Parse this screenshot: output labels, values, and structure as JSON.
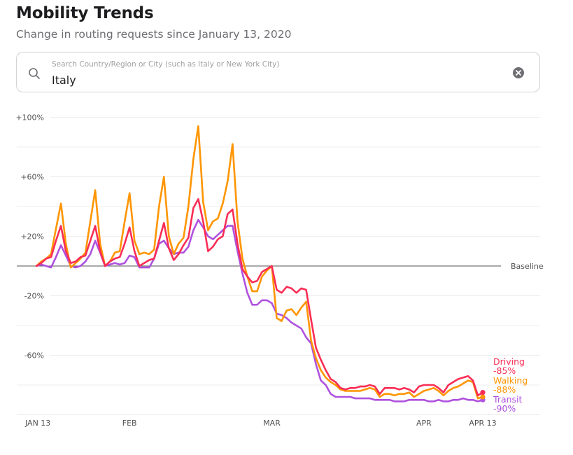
{
  "header": {
    "title": "Mobility Trends",
    "subtitle": "Change in routing requests since January 13, 2020"
  },
  "search": {
    "placeholder": "Search Country/Region or City (such as Italy or New York City)",
    "value": "Italy",
    "icon": "search-icon",
    "clear_icon": "clear-icon"
  },
  "chart_data": {
    "type": "line",
    "title": "Mobility Trends",
    "subtitle": "Change in routing requests since January 13, 2020",
    "xlabel": "",
    "ylabel": "",
    "x_start": "2020-01-13",
    "x_end": "2020-04-13",
    "x_unit": "day",
    "ylim": [
      -100,
      100
    ],
    "grid": true,
    "y_gridlines": [
      100,
      80,
      60,
      40,
      20,
      -20,
      -40,
      -60,
      -80,
      -100
    ],
    "y_ticks": [
      {
        "value": 100,
        "label": "+100%"
      },
      {
        "value": 60,
        "label": "+60%"
      },
      {
        "value": 20,
        "label": "+20%"
      },
      {
        "value": -20,
        "label": "-20%"
      },
      {
        "value": -60,
        "label": "-60%"
      }
    ],
    "x_ticks": [
      {
        "day": 0,
        "label": "JAN 13"
      },
      {
        "day": 19,
        "label": "FEB"
      },
      {
        "day": 48,
        "label": "MAR"
      },
      {
        "day": 79,
        "label": "APR"
      },
      {
        "day": 91,
        "label": "APR 13"
      }
    ],
    "baseline": {
      "value": 0,
      "label": "Baseline"
    },
    "legend_position": "right-end",
    "series": [
      {
        "name": "Driving",
        "color": "#fa2d55",
        "final_label": "-85%",
        "values": [
          0,
          2,
          5,
          6,
          17,
          27,
          10,
          2,
          3,
          6,
          7,
          17,
          27,
          10,
          0,
          3,
          5,
          6,
          15,
          26,
          10,
          0,
          2,
          4,
          5,
          17,
          29,
          12,
          4,
          8,
          14,
          19,
          39,
          45,
          30,
          10,
          13,
          18,
          20,
          35,
          38,
          15,
          -2,
          -7,
          -11,
          -10,
          -4,
          -2,
          0,
          -16,
          -18,
          -14,
          -15,
          -18,
          -15,
          -16,
          -36,
          -55,
          -63,
          -70,
          -76,
          -78,
          -82,
          -83,
          -82,
          -82,
          -81,
          -81,
          -80,
          -81,
          -86,
          -82,
          -82,
          -82,
          -83,
          -82,
          -83,
          -85,
          -81,
          -80,
          -80,
          -80,
          -82,
          -85,
          -80,
          -78,
          -76,
          -75,
          -74,
          -77,
          -87,
          -85
        ]
      },
      {
        "name": "Walking",
        "color": "#ff9500",
        "final_label": "-88%",
        "values": [
          0,
          3,
          5,
          8,
          25,
          42,
          15,
          -1,
          2,
          5,
          9,
          30,
          51,
          15,
          0,
          3,
          9,
          10,
          30,
          49,
          17,
          8,
          9,
          8,
          11,
          40,
          60,
          20,
          8,
          15,
          19,
          40,
          72,
          94,
          43,
          24,
          30,
          32,
          42,
          57,
          82,
          30,
          5,
          -7,
          -17,
          -17,
          -7,
          -3,
          0,
          -35,
          -37,
          -30,
          -29,
          -33,
          -28,
          -24,
          -50,
          -62,
          -70,
          -75,
          -78,
          -80,
          -83,
          -84,
          -84,
          -84,
          -84,
          -83,
          -82,
          -83,
          -88,
          -86,
          -86,
          -87,
          -86,
          -86,
          -85,
          -88,
          -86,
          -84,
          -83,
          -82,
          -84,
          -87,
          -84,
          -82,
          -81,
          -79,
          -77,
          -78,
          -89,
          -88
        ]
      },
      {
        "name": "Transit",
        "color": "#af52de",
        "final_label": "-90%",
        "values": [
          0,
          1,
          0,
          -1,
          6,
          14,
          7,
          0,
          -1,
          0,
          3,
          8,
          17,
          9,
          0,
          1,
          2,
          1,
          2,
          7,
          6,
          -1,
          -1,
          -1,
          5,
          15,
          17,
          12,
          8,
          9,
          9,
          13,
          24,
          31,
          26,
          20,
          18,
          21,
          24,
          27,
          27,
          10,
          -5,
          -18,
          -26,
          -26,
          -23,
          -23,
          -25,
          -32,
          -33,
          -35,
          -38,
          -40,
          -42,
          -48,
          -52,
          -66,
          -77,
          -80,
          -86,
          -88,
          -88,
          -88,
          -88,
          -89,
          -89,
          -89,
          -89,
          -90,
          -90,
          -90,
          -90,
          -91,
          -91,
          -91,
          -90,
          -90,
          -90,
          -90,
          -91,
          -91,
          -90,
          -91,
          -91,
          -90,
          -90,
          -89,
          -90,
          -90,
          -91,
          -90
        ]
      }
    ]
  }
}
